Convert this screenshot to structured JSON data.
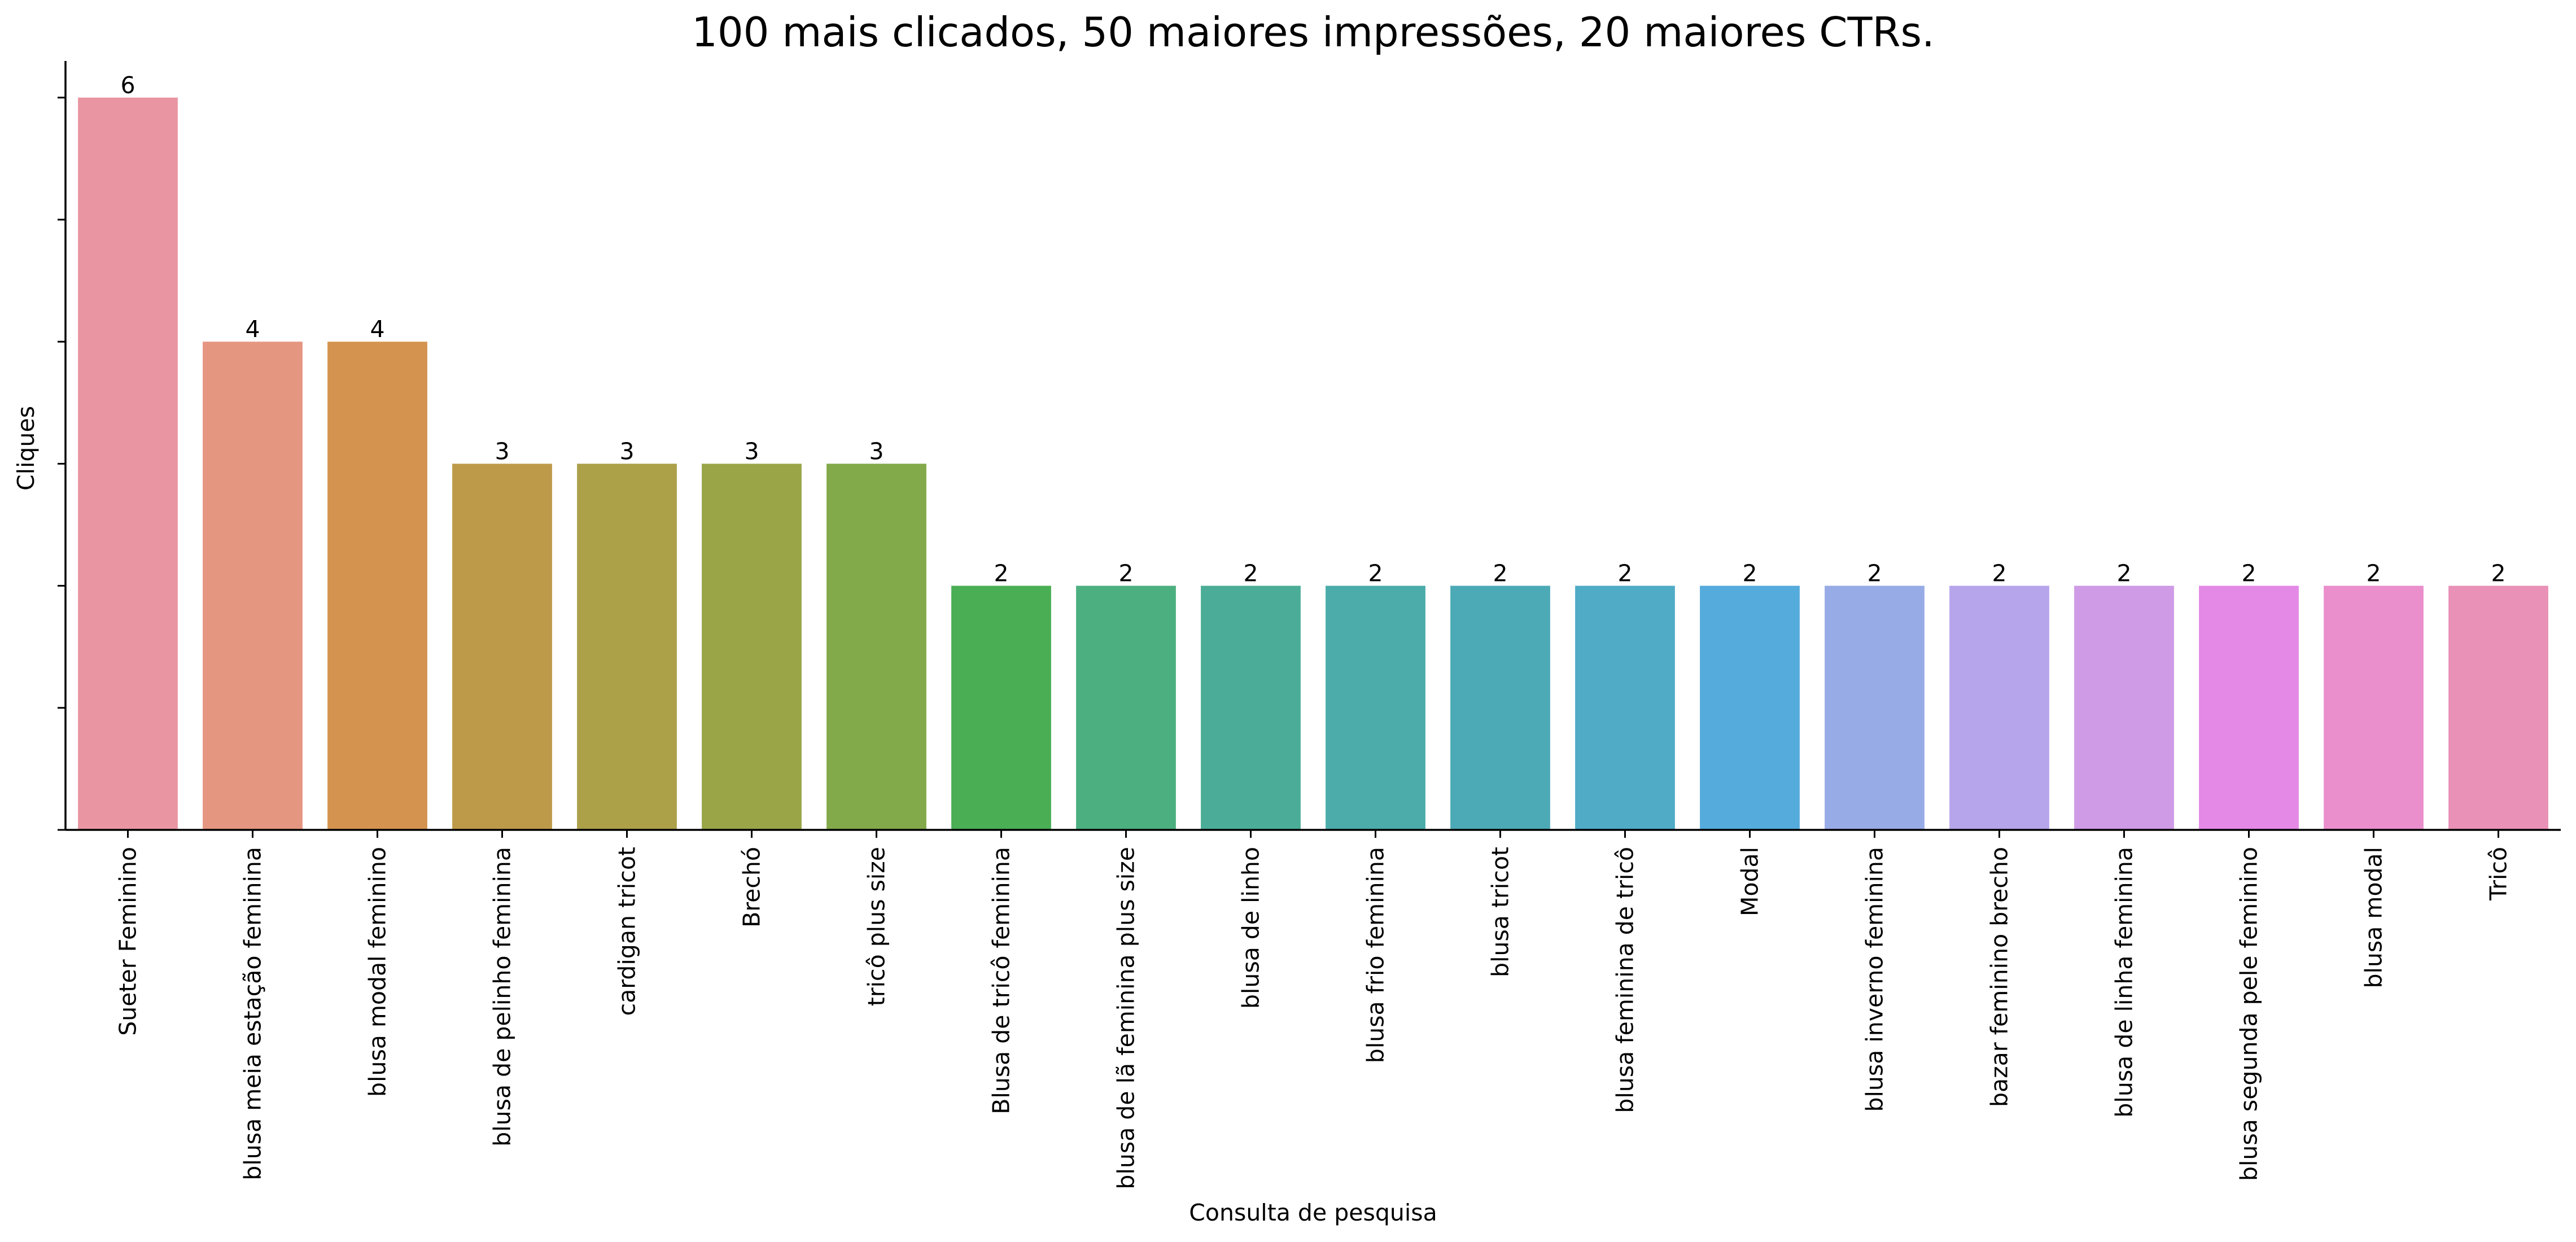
{
  "chart_data": {
    "type": "bar",
    "title": "100 mais clicados, 50 maiores impressões, 20 maiores CTRs.",
    "xlabel": "Consulta de pesquisa",
    "ylabel": "Cliques",
    "ylim": [
      0,
      6.3
    ],
    "y_ticks": [
      0,
      1,
      2,
      3,
      4,
      5,
      6
    ],
    "y_tick_labels_shown": false,
    "grid": false,
    "legend": "none",
    "x_tick_rotation": "vertical",
    "categories": [
      "Sueter Feminino",
      "blusa meia estação feminina",
      "blusa modal feminino",
      "blusa de pelinho feminina",
      "cardigan tricot",
      "Brechó",
      "tricô plus size",
      "Blusa de tricô feminina",
      "blusa de lã feminina plus size",
      "blusa de linho",
      "blusa frio feminina",
      "blusa tricot",
      "blusa feminina de tricô",
      "Modal",
      "blusa inverno feminina",
      "bazar feminino brecho",
      "blusa de linha feminina",
      "blusa segunda pele feminino",
      "blusa modal",
      "Tricô"
    ],
    "values": [
      6,
      4,
      4,
      3,
      3,
      3,
      3,
      2,
      2,
      2,
      2,
      2,
      2,
      2,
      2,
      2,
      2,
      2,
      2,
      2
    ],
    "data_labels": [
      "6",
      "4",
      "4",
      "3",
      "3",
      "3",
      "3",
      "2",
      "2",
      "2",
      "2",
      "2",
      "2",
      "2",
      "2",
      "2",
      "2",
      "2",
      "2",
      "2"
    ],
    "colors": [
      "#e996a2",
      "#e59681",
      "#d4944f",
      "#bd9a4a",
      "#aca049",
      "#9aa548",
      "#82a94a",
      "#4aae55",
      "#4caf80",
      "#4bad97",
      "#4bacaa",
      "#4caab6",
      "#4fabc6",
      "#55abdc",
      "#97abe6",
      "#b6a5eb",
      "#cf9ae6",
      "#e489e6",
      "#ea8fcc",
      "#e991b7"
    ]
  }
}
